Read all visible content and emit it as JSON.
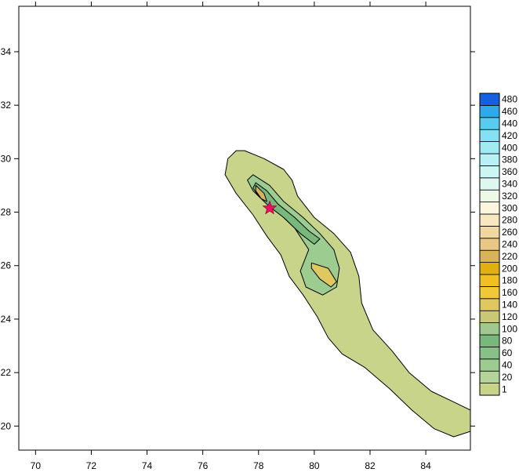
{
  "chart_data": {
    "type": "contour",
    "title": "",
    "xlabel": "",
    "ylabel": "",
    "xlim": [
      69.4,
      85.6
    ],
    "ylim": [
      19.1,
      35.7
    ],
    "x_ticks": [
      70,
      72,
      74,
      76,
      78,
      80,
      82,
      84
    ],
    "y_ticks": [
      20,
      22,
      24,
      26,
      28,
      30,
      32,
      34
    ],
    "grid": false,
    "legend_placement": "right",
    "levels": [
      1,
      20,
      40,
      60,
      80,
      100,
      120,
      140,
      160,
      180,
      200,
      220,
      240,
      260,
      280,
      300,
      320,
      340,
      360,
      380,
      400,
      420,
      440,
      460,
      480
    ],
    "level_colors": [
      "#c8d48a",
      "#b4d49a",
      "#9ccc90",
      "#88c088",
      "#78b87c",
      "#a0c890",
      "#c8c878",
      "#e0c860",
      "#f0c838",
      "#f0c020",
      "#e0b010",
      "#d8b458",
      "#e8c884",
      "#f0d8a0",
      "#f8e8c0",
      "#fcf6e0",
      "#eefae8",
      "#dcf8f0",
      "#ccf6f4",
      "#b8f0f6",
      "#a0eaf4",
      "#84e0f4",
      "#58ccf0",
      "#30a8ec",
      "#1460e0"
    ],
    "legend_labels": [
      "1",
      "20",
      "40",
      "60",
      "80",
      "100",
      "120",
      "140",
      "160",
      "180",
      "200",
      "220",
      "240",
      "260",
      "280",
      "300",
      "320",
      "340",
      "360",
      "380",
      "400",
      "420",
      "440",
      "460",
      "480"
    ],
    "outer_region_1": [
      [
        77.5,
        30.3
      ],
      [
        78.2,
        30.0
      ],
      [
        78.9,
        29.6
      ],
      [
        79.2,
        29.2
      ],
      [
        79.4,
        28.6
      ],
      [
        80.0,
        27.8
      ],
      [
        80.7,
        27.2
      ],
      [
        81.3,
        26.5
      ],
      [
        81.6,
        25.6
      ],
      [
        81.7,
        24.6
      ],
      [
        82.1,
        23.6
      ],
      [
        82.8,
        22.8
      ],
      [
        83.4,
        22.0
      ],
      [
        84.2,
        21.3
      ],
      [
        85.0,
        20.9
      ],
      [
        85.6,
        20.6
      ],
      [
        85.6,
        19.8
      ],
      [
        85.0,
        19.6
      ],
      [
        84.3,
        19.9
      ],
      [
        83.5,
        20.6
      ],
      [
        82.7,
        21.4
      ],
      [
        81.8,
        22.2
      ],
      [
        81.0,
        22.7
      ],
      [
        80.5,
        23.3
      ],
      [
        80.1,
        24.1
      ],
      [
        79.6,
        24.9
      ],
      [
        79.1,
        25.6
      ],
      [
        78.8,
        26.4
      ],
      [
        78.3,
        27.1
      ],
      [
        77.8,
        27.9
      ],
      [
        77.2,
        28.7
      ],
      [
        76.8,
        29.4
      ],
      [
        76.9,
        30.0
      ],
      [
        77.2,
        30.3
      ]
    ],
    "inner_region_20": [
      [
        77.8,
        29.4
      ],
      [
        78.4,
        29.0
      ],
      [
        78.9,
        28.4
      ],
      [
        79.6,
        27.8
      ],
      [
        80.2,
        27.2
      ],
      [
        80.7,
        26.6
      ],
      [
        80.9,
        25.9
      ],
      [
        80.8,
        25.2
      ],
      [
        80.3,
        24.9
      ],
      [
        79.7,
        25.2
      ],
      [
        79.5,
        25.8
      ],
      [
        79.8,
        26.6
      ],
      [
        79.3,
        27.4
      ],
      [
        78.8,
        27.9
      ],
      [
        78.3,
        28.3
      ],
      [
        77.8,
        28.8
      ],
      [
        77.6,
        29.2
      ]
    ],
    "inner_region_60": [
      [
        77.9,
        29.1
      ],
      [
        78.3,
        28.8
      ],
      [
        78.7,
        28.3
      ],
      [
        79.3,
        27.8
      ],
      [
        79.8,
        27.3
      ],
      [
        80.2,
        27.0
      ],
      [
        80.0,
        26.8
      ],
      [
        79.5,
        27.2
      ],
      [
        78.9,
        27.8
      ],
      [
        78.4,
        28.2
      ],
      [
        78.0,
        28.6
      ],
      [
        77.8,
        28.9
      ]
    ],
    "inner_region_100": [
      [
        79.9,
        26.1
      ],
      [
        80.5,
        25.9
      ],
      [
        80.8,
        25.4
      ],
      [
        80.6,
        25.2
      ],
      [
        80.2,
        25.5
      ],
      [
        79.9,
        25.9
      ]
    ],
    "inner_region_200": [
      [
        77.9,
        29.0
      ],
      [
        78.2,
        28.7
      ],
      [
        78.3,
        28.4
      ],
      [
        78.1,
        28.5
      ],
      [
        77.9,
        28.8
      ]
    ],
    "marker": {
      "symbol": "star",
      "x": 78.4,
      "y": 28.15,
      "color": "#ee1060"
    }
  }
}
